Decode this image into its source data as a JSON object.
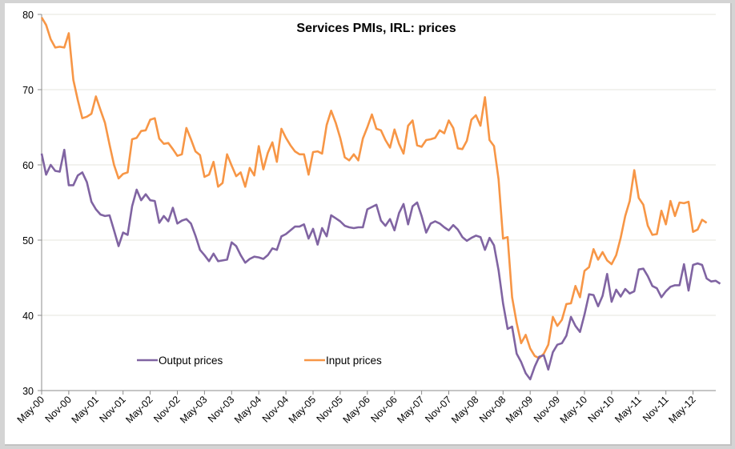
{
  "chart_data": {
    "type": "line",
    "title": "Services PMIs, IRL: prices",
    "xlabel": "",
    "ylabel": "",
    "ylim": [
      30,
      80
    ],
    "yticks": [
      30,
      40,
      50,
      60,
      70,
      80
    ],
    "grid": true,
    "legend_position": "bottom-left-inside",
    "x_start": "May-00",
    "x_tick_labels": [
      "May-00",
      "Nov-00",
      "May-01",
      "Nov-01",
      "May-02",
      "Nov-02",
      "May-03",
      "Nov-03",
      "May-04",
      "Nov-04",
      "May-05",
      "Nov-05",
      "May-06",
      "Nov-06",
      "May-07",
      "Nov-07",
      "May-08",
      "Nov-08",
      "May-09",
      "Nov-09",
      "May-10",
      "Nov-10",
      "May-11",
      "Nov-11",
      "May-12"
    ],
    "series": [
      {
        "name": "Output prices",
        "color": "#8064a2",
        "values": [
          61.5,
          58.7,
          60.0,
          59.2,
          59.1,
          62.0,
          57.3,
          57.3,
          58.6,
          59.0,
          57.7,
          55.1,
          54.1,
          53.4,
          53.2,
          53.3,
          51.3,
          49.2,
          51.0,
          50.7,
          54.5,
          56.7,
          55.3,
          56.1,
          55.3,
          55.2,
          52.3,
          53.2,
          52.5,
          54.3,
          52.2,
          52.6,
          52.8,
          52.2,
          50.6,
          48.7,
          48.0,
          47.2,
          48.2,
          47.2,
          47.3,
          47.4,
          49.7,
          49.2,
          48.0,
          47.0,
          47.5,
          47.8,
          47.7,
          47.5,
          48.0,
          48.9,
          48.7,
          50.5,
          50.8,
          51.3,
          51.8,
          51.8,
          52.1,
          50.2,
          51.5,
          49.4,
          51.6,
          50.5,
          53.3,
          52.9,
          52.5,
          51.9,
          51.7,
          51.6,
          51.7,
          51.7,
          54.1,
          54.4,
          54.7,
          52.6,
          51.9,
          52.8,
          51.3,
          53.6,
          54.8,
          52.1,
          54.5,
          55.0,
          53.2,
          51.0,
          52.2,
          52.5,
          52.2,
          51.7,
          51.3,
          52.0,
          51.4,
          50.4,
          49.9,
          50.3,
          50.6,
          50.4,
          48.7,
          50.3,
          49.3,
          46.0,
          41.6,
          38.2,
          38.5,
          34.9,
          33.8,
          32.3,
          31.5,
          33.2,
          34.5,
          34.7,
          32.8,
          35.1,
          36.1,
          36.3,
          37.3,
          39.8,
          38.6,
          37.8,
          40.1,
          42.8,
          42.7,
          41.2,
          42.6,
          45.5,
          41.8,
          43.4,
          42.5,
          43.5,
          42.9,
          43.2,
          46.1,
          46.2,
          45.2,
          43.9,
          43.6,
          42.4,
          43.2,
          43.8,
          44.0,
          44.0,
          46.8,
          43.3,
          46.7,
          46.9,
          46.7,
          44.9,
          44.5,
          44.6,
          44.2
        ]
      },
      {
        "name": "Input prices",
        "color": "#f79646",
        "values": [
          79.6,
          78.6,
          76.7,
          75.6,
          75.7,
          75.6,
          77.5,
          71.3,
          68.6,
          66.2,
          66.4,
          66.8,
          69.1,
          67.3,
          65.6,
          62.7,
          60.0,
          58.2,
          58.8,
          59.0,
          63.4,
          63.6,
          64.5,
          64.6,
          66.0,
          66.2,
          63.5,
          62.8,
          62.9,
          62.1,
          61.2,
          61.4,
          64.9,
          63.4,
          61.8,
          61.3,
          58.4,
          58.7,
          60.4,
          57.1,
          57.6,
          61.4,
          59.9,
          58.5,
          59.0,
          57.1,
          59.6,
          58.6,
          62.5,
          59.4,
          61.6,
          63.0,
          60.4,
          64.8,
          63.6,
          62.6,
          61.8,
          61.4,
          61.4,
          58.7,
          61.7,
          61.8,
          61.5,
          65.3,
          67.2,
          65.6,
          63.6,
          61.0,
          60.6,
          61.4,
          60.6,
          63.5,
          65.0,
          66.7,
          64.8,
          64.6,
          63.3,
          62.3,
          64.7,
          62.8,
          61.5,
          65.2,
          65.9,
          62.6,
          62.4,
          63.3,
          63.4,
          63.6,
          64.6,
          64.2,
          65.9,
          64.9,
          62.2,
          62.1,
          63.2,
          66.0,
          66.6,
          65.2,
          69.0,
          63.3,
          62.5,
          58.1,
          50.2,
          50.4,
          42.4,
          39.0,
          36.3,
          37.4,
          35.6,
          34.6,
          34.3,
          34.9,
          36.1,
          39.8,
          38.6,
          39.4,
          41.5,
          41.6,
          43.9,
          42.4,
          45.9,
          46.4,
          48.8,
          47.4,
          48.4,
          47.3,
          46.8,
          48.0,
          50.3,
          53.2,
          55.2,
          59.3,
          55.6,
          54.7,
          51.9,
          50.7,
          50.8,
          53.9,
          52.1,
          55.2,
          53.2,
          55.0,
          54.9,
          55.1,
          51.1,
          51.4,
          52.7,
          52.3
        ]
      }
    ],
    "legend": [
      {
        "label": "Output prices",
        "color": "#8064a2"
      },
      {
        "label": "Input prices",
        "color": "#f79646"
      }
    ]
  }
}
